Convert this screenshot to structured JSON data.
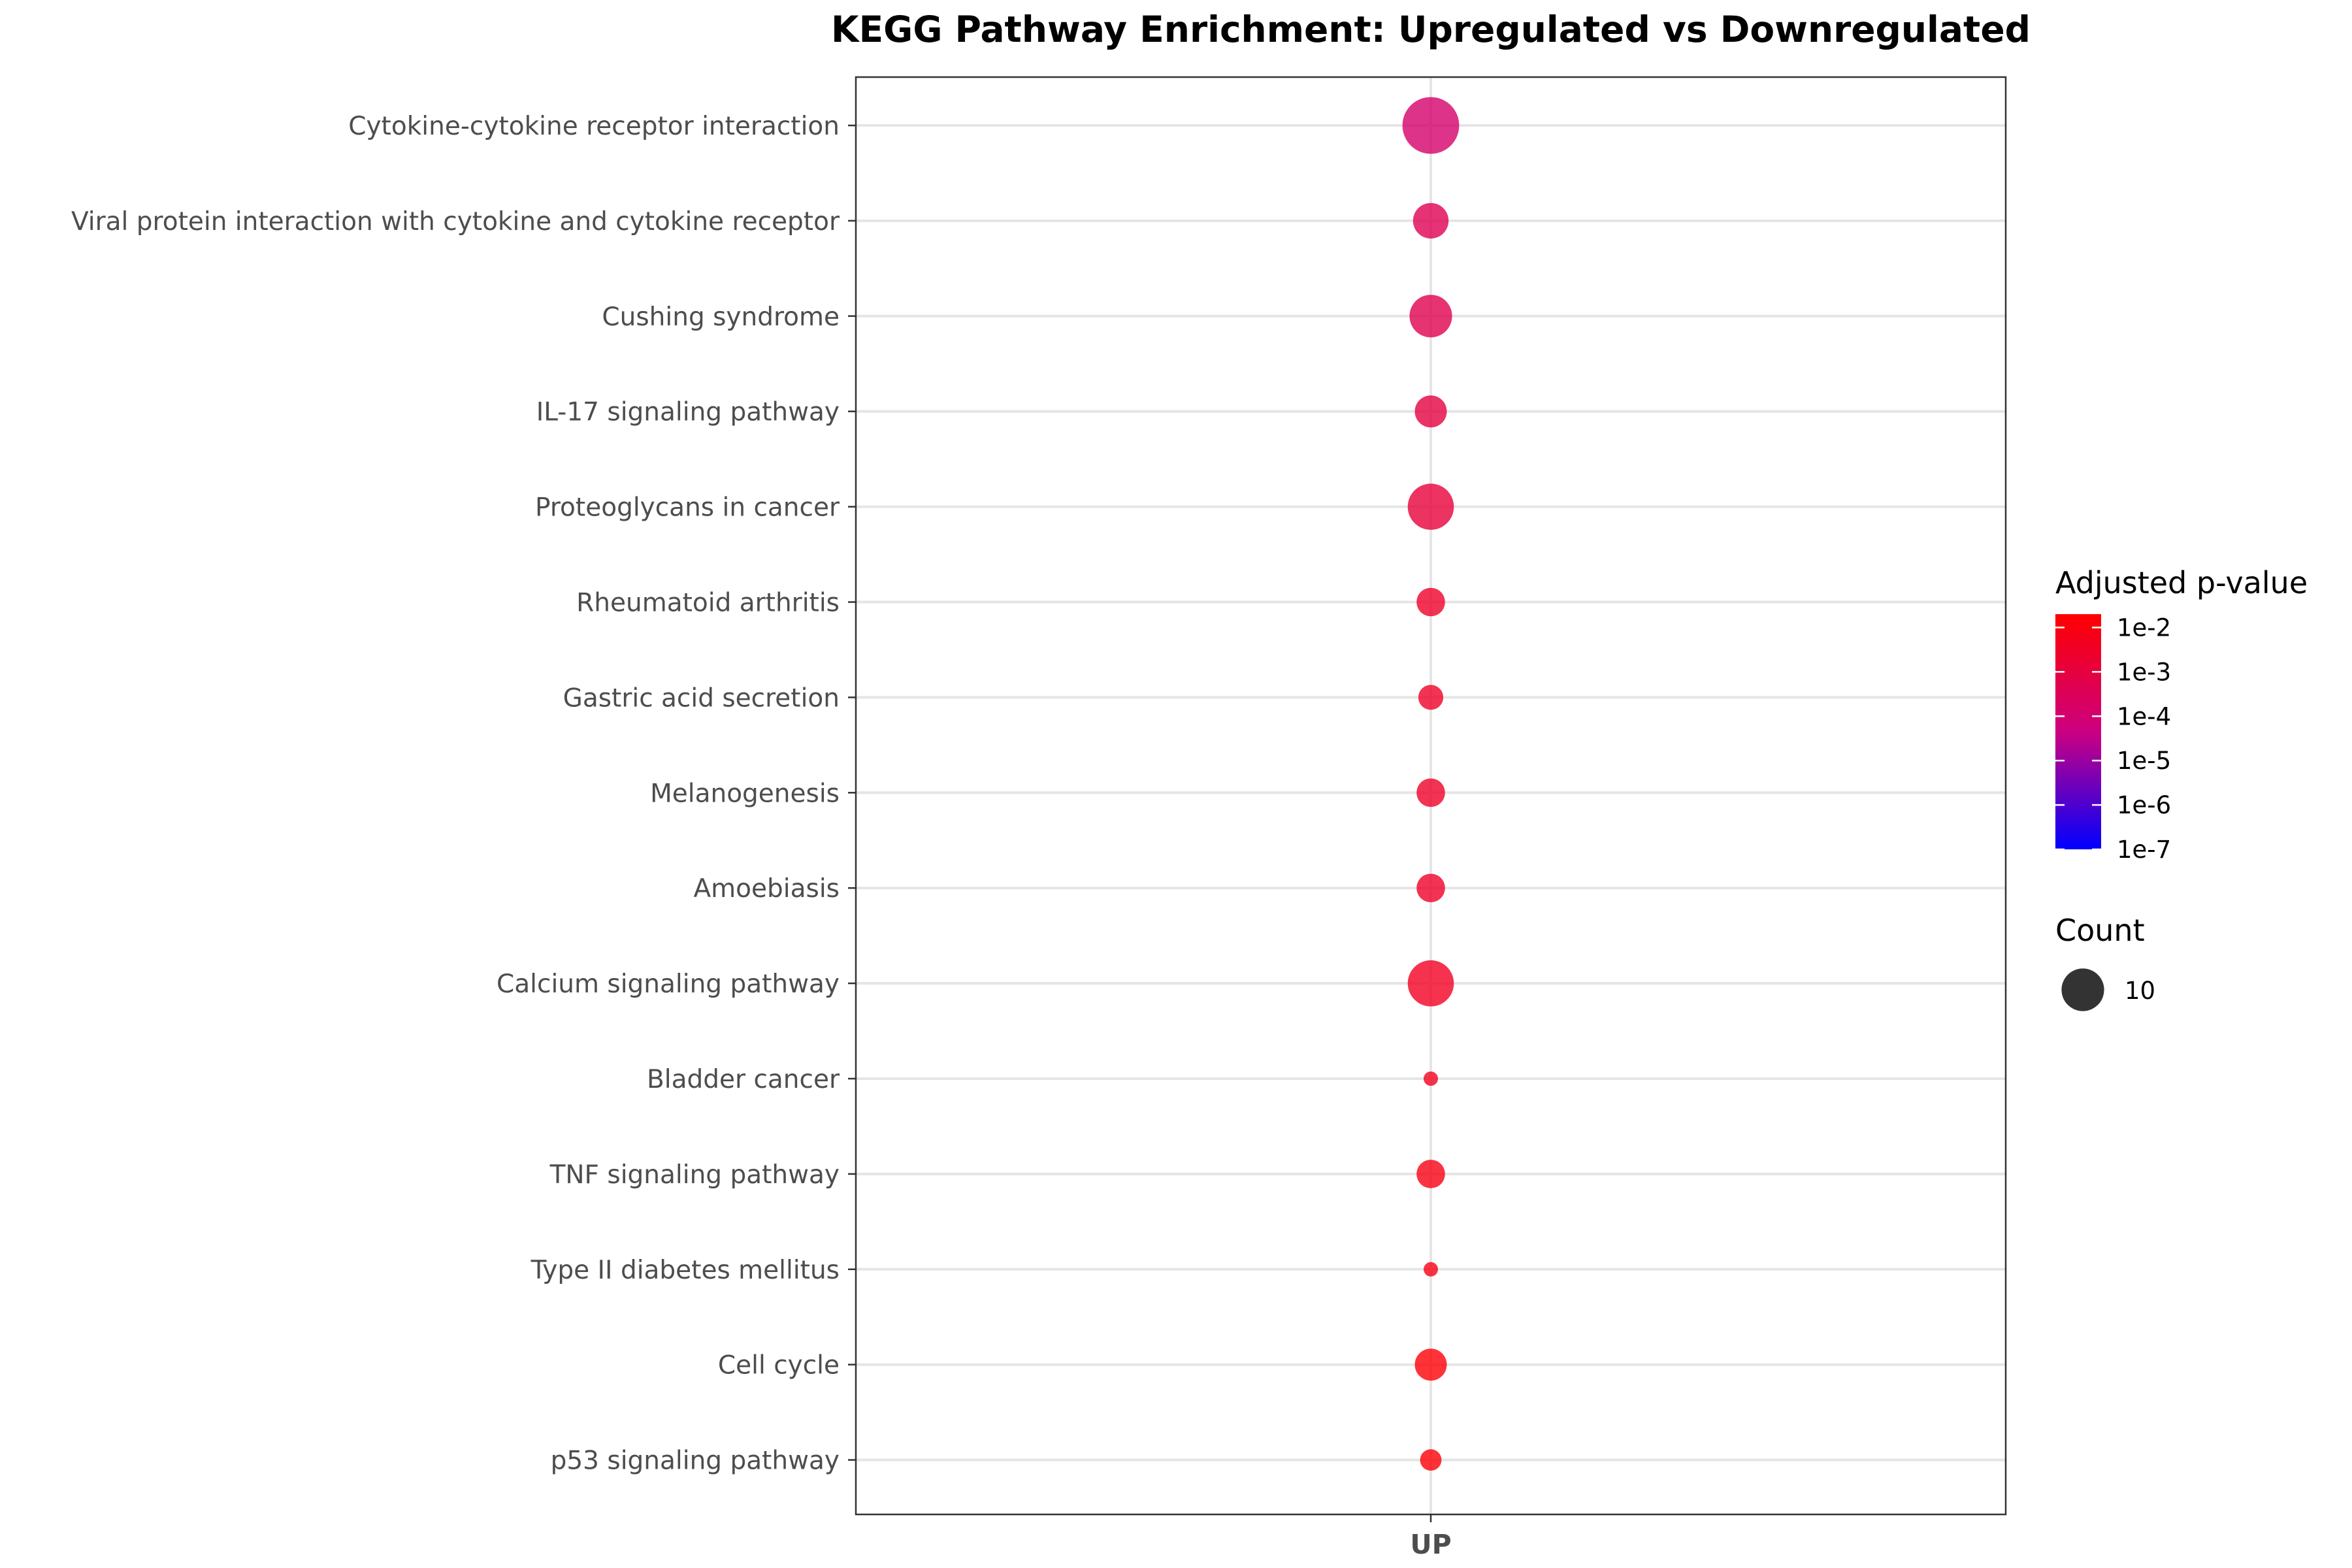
{
  "chart_data": {
    "type": "scatter",
    "title": "KEGG Pathway Enrichment: Upregulated vs Downregulated",
    "xlabel": "",
    "ylabel": "",
    "categories_x": [
      "UP"
    ],
    "categories_y": [
      "Cytokine-cytokine receptor interaction",
      "Viral protein interaction with cytokine and cytokine receptor",
      "Cushing syndrome",
      "IL-17 signaling pathway",
      "Proteoglycans in cancer",
      "Rheumatoid arthritis",
      "Gastric acid secretion",
      "Melanogenesis",
      "Amoebiasis",
      "Calcium signaling pathway",
      "Bladder cancer",
      "TNF signaling pathway",
      "Type II diabetes mellitus",
      "Cell cycle",
      "p53 signaling pathway"
    ],
    "points": [
      {
        "pathway": "Cytokine-cytokine receptor interaction",
        "group": "UP",
        "count": 14,
        "p_adjust": 0.00012
      },
      {
        "pathway": "Viral protein interaction with cytokine and cytokine receptor",
        "group": "UP",
        "count": 8,
        "p_adjust": 0.0004
      },
      {
        "pathway": "Cushing syndrome",
        "group": "UP",
        "count": 10,
        "p_adjust": 0.0005
      },
      {
        "pathway": "IL-17 signaling pathway",
        "group": "UP",
        "count": 7,
        "p_adjust": 0.0009
      },
      {
        "pathway": "Proteoglycans in cancer",
        "group": "UP",
        "count": 11,
        "p_adjust": 0.0012
      },
      {
        "pathway": "Rheumatoid arthritis",
        "group": "UP",
        "count": 6,
        "p_adjust": 0.003
      },
      {
        "pathway": "Gastric acid secretion",
        "group": "UP",
        "count": 5,
        "p_adjust": 0.003
      },
      {
        "pathway": "Melanogenesis",
        "group": "UP",
        "count": 6,
        "p_adjust": 0.003
      },
      {
        "pathway": "Amoebiasis",
        "group": "UP",
        "count": 6,
        "p_adjust": 0.003
      },
      {
        "pathway": "Calcium signaling pathway",
        "group": "UP",
        "count": 11,
        "p_adjust": 0.004
      },
      {
        "pathway": "Bladder cancer",
        "group": "UP",
        "count": 2,
        "p_adjust": 0.005
      },
      {
        "pathway": "TNF signaling pathway",
        "group": "UP",
        "count": 6,
        "p_adjust": 0.008
      },
      {
        "pathway": "Type II diabetes mellitus",
        "group": "UP",
        "count": 2,
        "p_adjust": 0.008
      },
      {
        "pathway": "Cell cycle",
        "group": "UP",
        "count": 7,
        "p_adjust": 0.015
      },
      {
        "pathway": "p53 signaling pathway",
        "group": "UP",
        "count": 4,
        "p_adjust": 0.016
      }
    ],
    "legend": {
      "color_title": "Adjusted p-value",
      "color_ticks": [
        "1e-2",
        "1e-3",
        "1e-4",
        "1e-5",
        "1e-6",
        "1e-7"
      ],
      "color_tick_values": [
        0.01,
        0.001,
        0.0001,
        1e-05,
        1e-06,
        1e-07
      ],
      "color_range": [
        1e-07,
        0.02
      ],
      "color_scale": "log",
      "color_high": "#ff0000",
      "color_low": "#0000ff",
      "size_title": "Count",
      "size_ticks": [
        "10"
      ],
      "size_tick_values": [
        10
      ],
      "size_key_color": "#333333",
      "placement": "right"
    },
    "grid": true,
    "point_alpha": 0.8,
    "panel_border_color": "#333333",
    "grid_color": "#e5e5e5"
  }
}
